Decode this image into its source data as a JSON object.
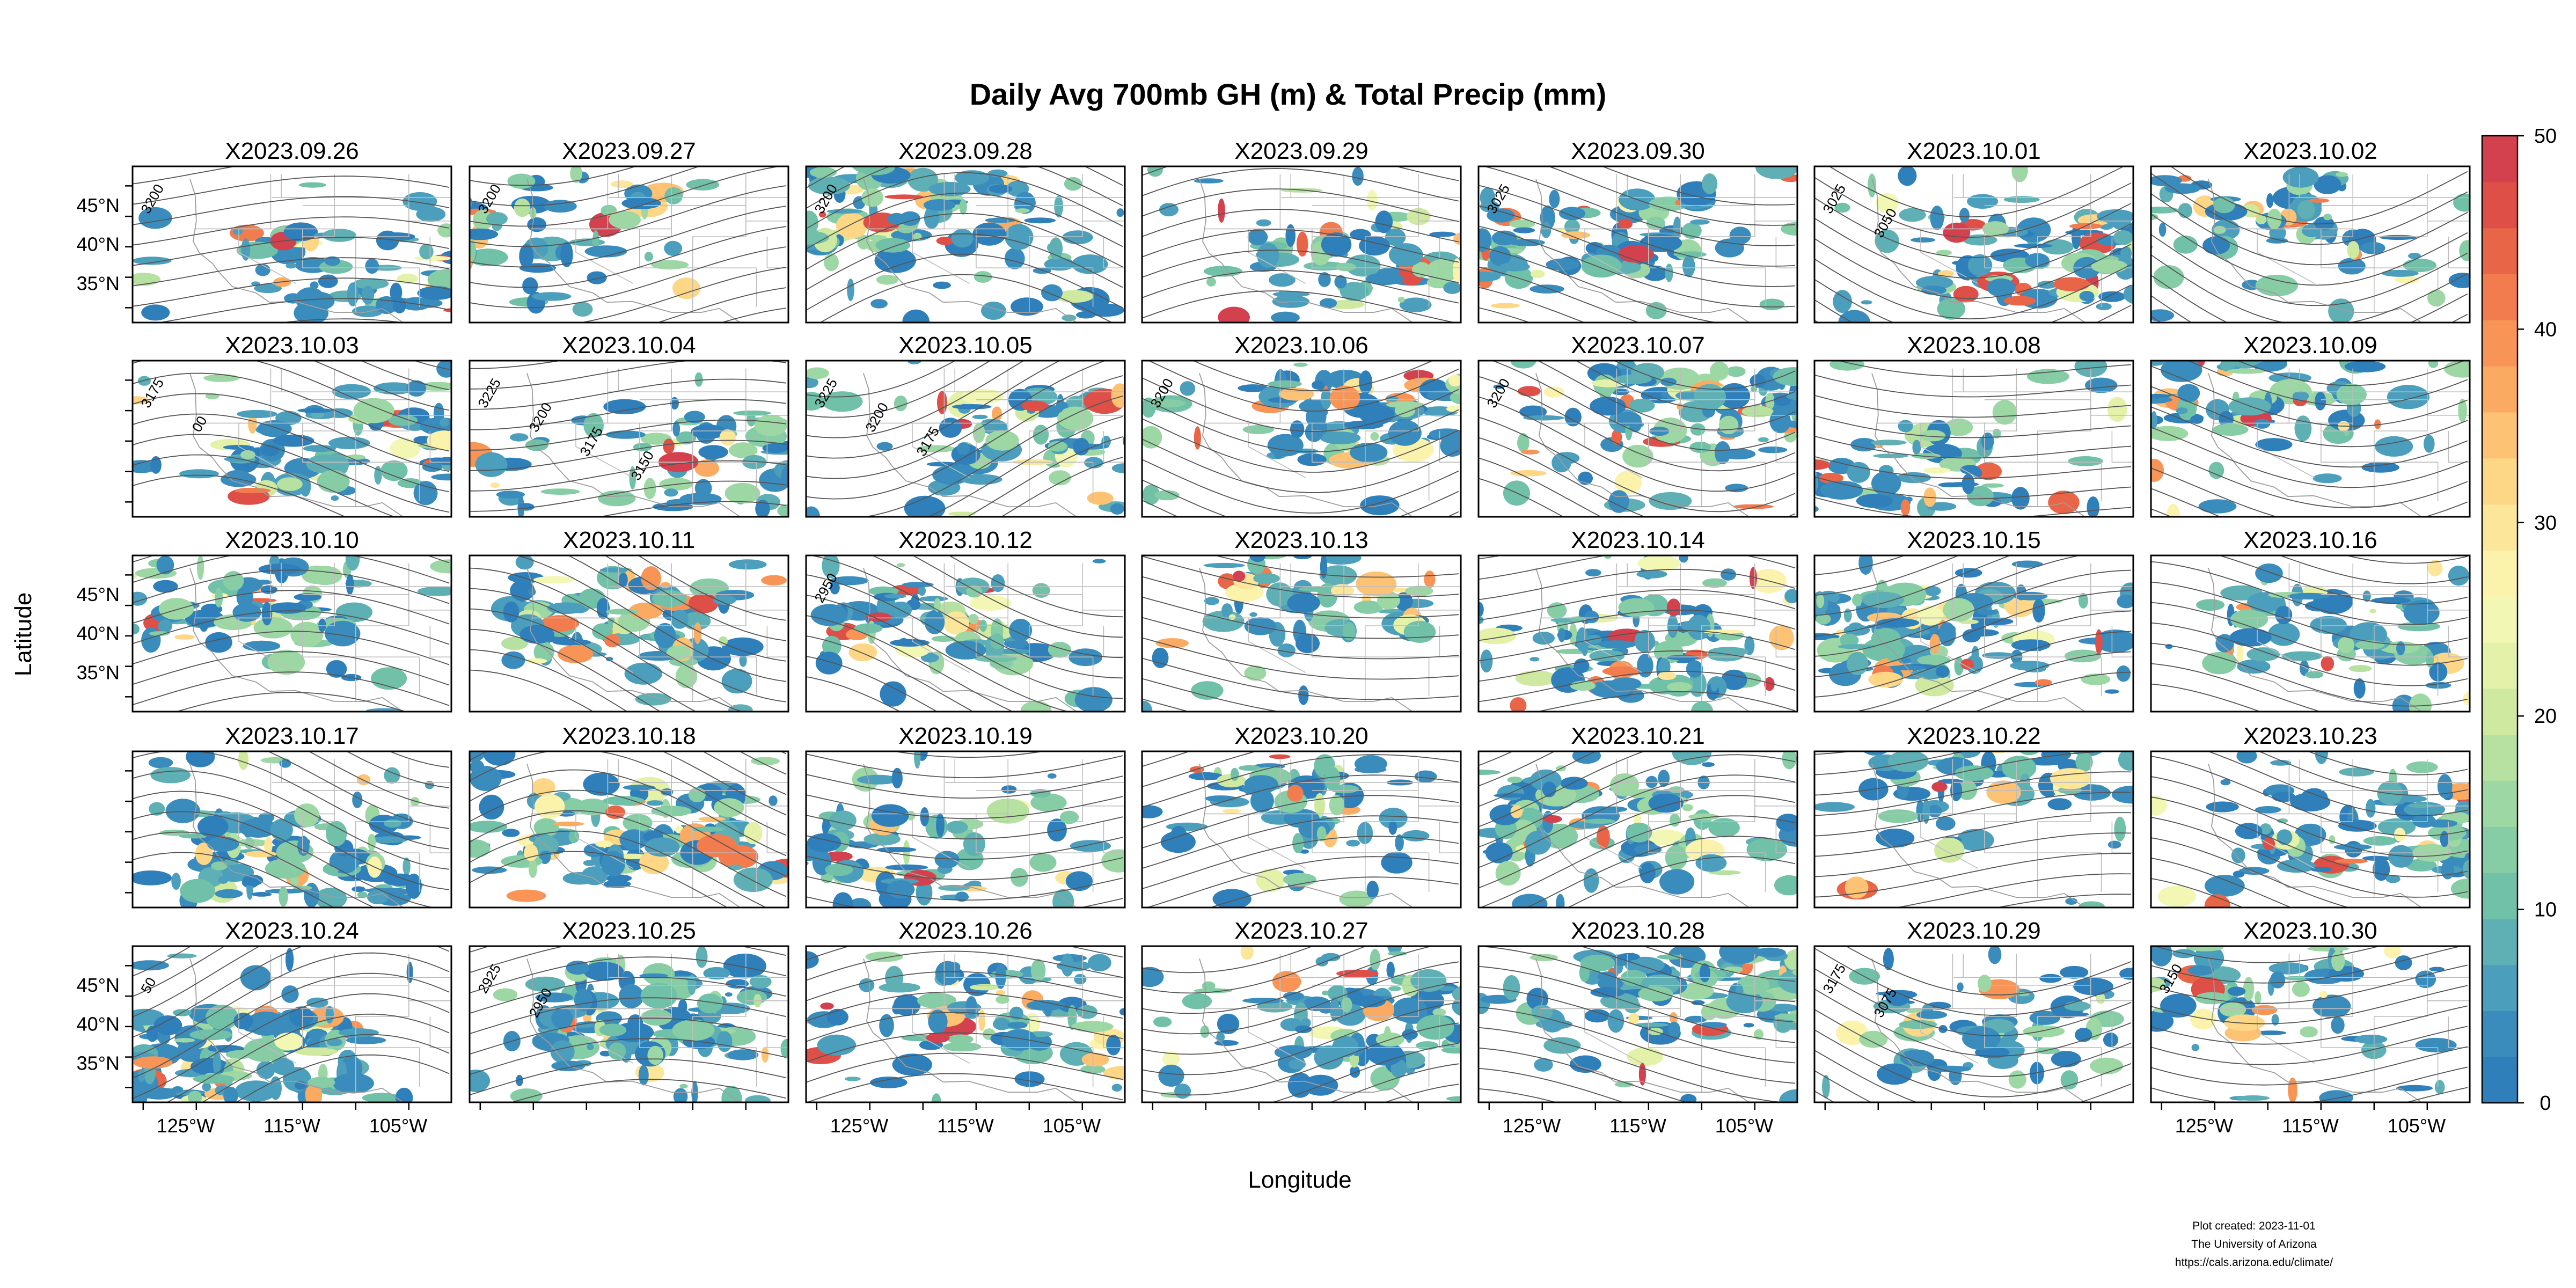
{
  "chart_data": {
    "type": "heatmap",
    "title": "Daily Avg 700mb GH (m) & Total Precip (mm)",
    "xlabel": "Longitude",
    "ylabel": "Latitude",
    "x_ticks": [
      "125°W",
      "115°W",
      "105°W"
    ],
    "y_ticks": [
      "45°N",
      "40°N",
      "35°N"
    ],
    "colorbar": {
      "ticks": [
        "50",
        "40",
        "30",
        "20",
        "10",
        "0"
      ],
      "range": [
        0,
        50
      ],
      "colors": [
        "#2e7fba",
        "#3a8cbd",
        "#4c9ebd",
        "#5fb0b4",
        "#71c0a8",
        "#86ccA4",
        "#9dd8a4",
        "#b6e1a0",
        "#cfeaa0",
        "#e3f2a8",
        "#f2f7b4",
        "#fbf3ac",
        "#fce69a",
        "#fdd686",
        "#fdc274",
        "#fbaa62",
        "#f89456",
        "#f27c4e",
        "#e96548",
        "#de4f48",
        "#d4414e"
      ]
    },
    "panels": [
      {
        "date": "X2023.09.26",
        "contours": [
          "3200"
        ]
      },
      {
        "date": "X2023.09.27",
        "contours": [
          "3200"
        ]
      },
      {
        "date": "X2023.09.28",
        "contours": [
          "3200"
        ]
      },
      {
        "date": "X2023.09.29",
        "contours": []
      },
      {
        "date": "X2023.09.30",
        "contours": [
          "3025"
        ]
      },
      {
        "date": "X2023.10.01",
        "contours": [
          "3025",
          "3050"
        ]
      },
      {
        "date": "X2023.10.02",
        "contours": []
      },
      {
        "date": "X2023.10.03",
        "contours": [
          "3175",
          "00"
        ]
      },
      {
        "date": "X2023.10.04",
        "contours": [
          "3225",
          "3200",
          "3175",
          "3150"
        ]
      },
      {
        "date": "X2023.10.05",
        "contours": [
          "3225",
          "3200",
          "3175"
        ]
      },
      {
        "date": "X2023.10.06",
        "contours": [
          "3200"
        ]
      },
      {
        "date": "X2023.10.07",
        "contours": [
          "3200"
        ]
      },
      {
        "date": "X2023.10.08",
        "contours": []
      },
      {
        "date": "X2023.10.09",
        "contours": []
      },
      {
        "date": "X2023.10.10",
        "contours": []
      },
      {
        "date": "X2023.10.11",
        "contours": []
      },
      {
        "date": "X2023.10.12",
        "contours": [
          "2950"
        ]
      },
      {
        "date": "X2023.10.13",
        "contours": []
      },
      {
        "date": "X2023.10.14",
        "contours": []
      },
      {
        "date": "X2023.10.15",
        "contours": []
      },
      {
        "date": "X2023.10.16",
        "contours": []
      },
      {
        "date": "X2023.10.17",
        "contours": []
      },
      {
        "date": "X2023.10.18",
        "contours": []
      },
      {
        "date": "X2023.10.19",
        "contours": []
      },
      {
        "date": "X2023.10.20",
        "contours": []
      },
      {
        "date": "X2023.10.21",
        "contours": []
      },
      {
        "date": "X2023.10.22",
        "contours": []
      },
      {
        "date": "X2023.10.23",
        "contours": []
      },
      {
        "date": "X2023.10.24",
        "contours": [
          "50"
        ]
      },
      {
        "date": "X2023.10.25",
        "contours": [
          "2925",
          "2950"
        ]
      },
      {
        "date": "X2023.10.26",
        "contours": []
      },
      {
        "date": "X2023.10.27",
        "contours": []
      },
      {
        "date": "X2023.10.28",
        "contours": []
      },
      {
        "date": "X2023.10.29",
        "contours": [
          "3175",
          "3075"
        ]
      },
      {
        "date": "X2023.10.30",
        "contours": [
          "3150"
        ]
      }
    ]
  },
  "footer": {
    "line1": "Plot created: 2023-11-01",
    "line2": "The University of Arizona",
    "line3": "https://cals.arizona.edu/climate/"
  }
}
